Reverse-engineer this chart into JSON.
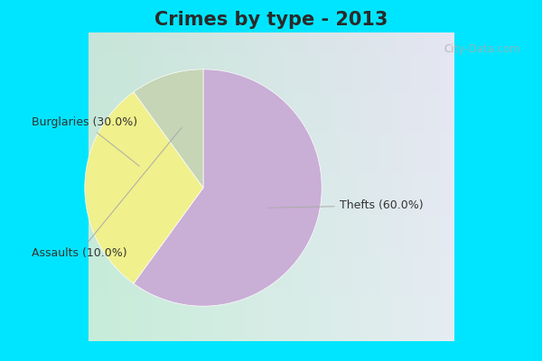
{
  "title": "Crimes by type - 2013",
  "slices": [
    "Thefts",
    "Burglaries",
    "Assaults"
  ],
  "values": [
    60.0,
    30.0,
    10.0
  ],
  "colors": [
    "#c9aed6",
    "#f0f08c",
    "#c5d5b5"
  ],
  "labels": [
    "Thefts (60.0%)",
    "Burglaries (30.0%)",
    "Assaults (10.0%)"
  ],
  "startangle": 90,
  "border_color": "#00e5ff",
  "border_width": 8,
  "background_color": "#c8ede3",
  "title_fontsize": 15,
  "label_fontsize": 9,
  "watermark": "City-Data.com",
  "title_color": "#2a2a2a"
}
